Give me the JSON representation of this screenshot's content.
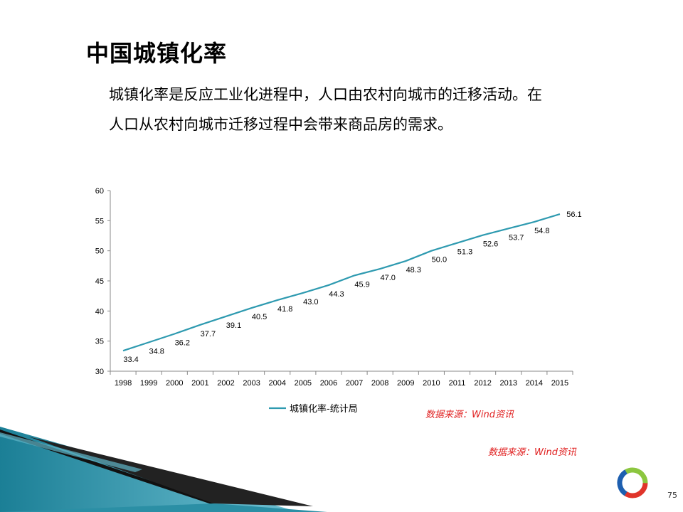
{
  "slide": {
    "title": "中国城镇化率",
    "body_lines": [
      "城镇化率是反应工业化进程中，人口由农村向城市的迁移活动。在",
      "人口从农村向城市迁移过程中会带来商品房的需求。"
    ],
    "source_note_1": "数据来源：Wind资讯",
    "source_note_2": "数据来源：Wind资讯",
    "page_number": "75"
  },
  "colors": {
    "line": "#2e9ab0",
    "source_text": "#e02020",
    "deco_teal": "#1f8ea3"
  },
  "chart_data": {
    "type": "line",
    "categories": [
      "1998",
      "1999",
      "2000",
      "2001",
      "2002",
      "2003",
      "2004",
      "2005",
      "2006",
      "2007",
      "2008",
      "2009",
      "2010",
      "2011",
      "2012",
      "2013",
      "2014",
      "2015"
    ],
    "series": [
      {
        "name": "城镇化率-统计局",
        "values": [
          33.4,
          34.8,
          36.2,
          37.7,
          39.1,
          40.5,
          41.8,
          43.0,
          44.3,
          45.9,
          47.0,
          48.3,
          50.0,
          51.3,
          52.6,
          53.7,
          54.8,
          56.1
        ],
        "data_labels": [
          "33.4",
          "34.8",
          "36.2",
          "37.7",
          "39.1",
          "40.5",
          "41.8",
          "43.0",
          "44.3",
          "45.9",
          "47.0",
          "48.3",
          "50.0",
          "51.3",
          "52.6",
          "53.7",
          "54.8",
          "56.1"
        ]
      }
    ],
    "y_ticks": [
      30,
      35,
      40,
      45,
      50,
      55,
      60
    ],
    "ylim": [
      30,
      60
    ],
    "grid": false,
    "legend_position": "bottom",
    "title": "",
    "xlabel": "",
    "ylabel": ""
  }
}
